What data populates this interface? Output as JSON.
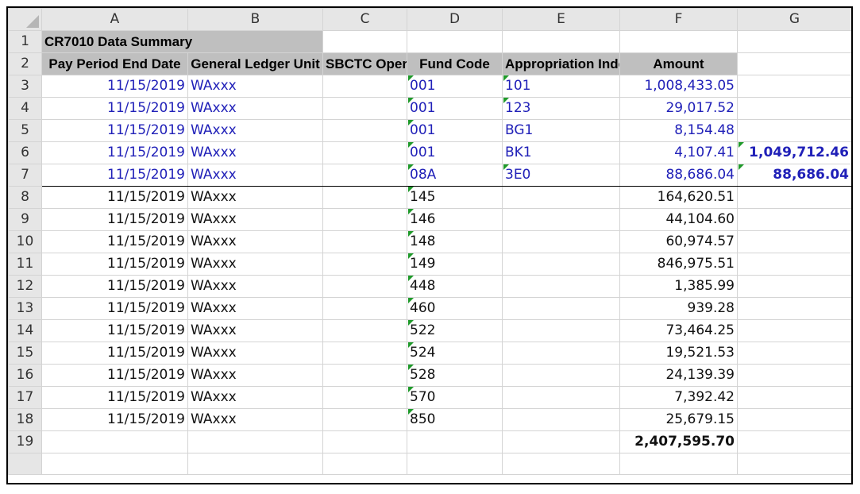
{
  "spreadsheet": {
    "columns": [
      "A",
      "B",
      "C",
      "D",
      "E",
      "F",
      "G"
    ],
    "row_numbers": [
      "1",
      "2",
      "3",
      "4",
      "5",
      "6",
      "7",
      "8",
      "9",
      "10",
      "11",
      "12",
      "13",
      "14",
      "15",
      "16",
      "17",
      "18",
      "19"
    ],
    "title": "CR7010 Data Summary",
    "headers": {
      "pay_period": "Pay Period End Date",
      "gl_unit": "General Ledger Unit",
      "oper_unit": "SBCTC Oper Unit",
      "fund_code": "Fund Code",
      "approp_index": "Appropriation Index",
      "amount": "Amount"
    },
    "rows": [
      {
        "date": "11/15/2019",
        "unit": "WAxxx",
        "oper": "",
        "fund": "001",
        "index": "101",
        "amount": "1,008,433.05",
        "g": ""
      },
      {
        "date": "11/15/2019",
        "unit": "WAxxx",
        "oper": "",
        "fund": "001",
        "index": "123",
        "amount": "29,017.52",
        "g": ""
      },
      {
        "date": "11/15/2019",
        "unit": "WAxxx",
        "oper": "",
        "fund": "001",
        "index": "BG1",
        "amount": "8,154.48",
        "g": ""
      },
      {
        "date": "11/15/2019",
        "unit": "WAxxx",
        "oper": "",
        "fund": "001",
        "index": "BK1",
        "amount": "4,107.41",
        "g": "1,049,712.46"
      },
      {
        "date": "11/15/2019",
        "unit": "WAxxx",
        "oper": "",
        "fund": "08A",
        "index": "3E0",
        "amount": "88,686.04",
        "g": "88,686.04"
      },
      {
        "date": "11/15/2019",
        "unit": "WAxxx",
        "oper": "",
        "fund": "145",
        "index": "",
        "amount": "164,620.51",
        "g": ""
      },
      {
        "date": "11/15/2019",
        "unit": "WAxxx",
        "oper": "",
        "fund": "146",
        "index": "",
        "amount": "44,104.60",
        "g": ""
      },
      {
        "date": "11/15/2019",
        "unit": "WAxxx",
        "oper": "",
        "fund": "148",
        "index": "",
        "amount": "60,974.57",
        "g": ""
      },
      {
        "date": "11/15/2019",
        "unit": "WAxxx",
        "oper": "",
        "fund": "149",
        "index": "",
        "amount": "846,975.51",
        "g": ""
      },
      {
        "date": "11/15/2019",
        "unit": "WAxxx",
        "oper": "",
        "fund": "448",
        "index": "",
        "amount": "1,385.99",
        "g": ""
      },
      {
        "date": "11/15/2019",
        "unit": "WAxxx",
        "oper": "",
        "fund": "460",
        "index": "",
        "amount": "939.28",
        "g": ""
      },
      {
        "date": "11/15/2019",
        "unit": "WAxxx",
        "oper": "",
        "fund": "522",
        "index": "",
        "amount": "73,464.25",
        "g": ""
      },
      {
        "date": "11/15/2019",
        "unit": "WAxxx",
        "oper": "",
        "fund": "524",
        "index": "",
        "amount": "19,521.53",
        "g": ""
      },
      {
        "date": "11/15/2019",
        "unit": "WAxxx",
        "oper": "",
        "fund": "528",
        "index": "",
        "amount": "24,139.39",
        "g": ""
      },
      {
        "date": "11/15/2019",
        "unit": "WAxxx",
        "oper": "",
        "fund": "570",
        "index": "",
        "amount": "7,392.42",
        "g": ""
      },
      {
        "date": "11/15/2019",
        "unit": "WAxxx",
        "oper": "",
        "fund": "850",
        "index": "",
        "amount": "25,679.15",
        "g": ""
      }
    ],
    "total": "2,407,595.70",
    "colors": {
      "blue_text": "#2020b8",
      "header_fill": "#bfbfbf",
      "flag_green": "#1f9a2a"
    }
  }
}
